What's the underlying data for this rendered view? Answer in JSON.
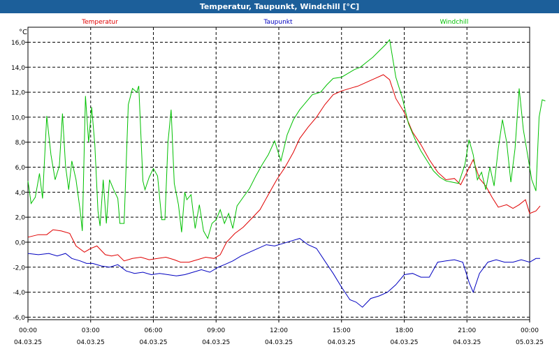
{
  "window": {
    "title": "Temperatur, Taupunkt, Windchill [°C]"
  },
  "chart_data": {
    "type": "line",
    "title": "Temperatur, Taupunkt, Windchill [°C]",
    "ylabel": "°C",
    "xlabel": "",
    "ylim": [
      -6.2,
      17.2
    ],
    "xlim": [
      0,
      24
    ],
    "grid": true,
    "yticks": [
      -6,
      -4,
      -2,
      0,
      2,
      4,
      6,
      8,
      10,
      12,
      14,
      16
    ],
    "ytick_labels": [
      "-6,0",
      "-4,0",
      "-2,0",
      "0,0",
      "2,0",
      "4,0",
      "6,0",
      "8,0",
      "10,0",
      "12,0",
      "14,0",
      "16,0"
    ],
    "xticks": [
      {
        "x": 0,
        "time": "00:00",
        "date": "04.03.25"
      },
      {
        "x": 3,
        "time": "03:00",
        "date": "04.03.25"
      },
      {
        "x": 6,
        "time": "06:00",
        "date": "04.03.25"
      },
      {
        "x": 9,
        "time": "09:00",
        "date": "04.03.25"
      },
      {
        "x": 12,
        "time": "12:00",
        "date": "04.03.25"
      },
      {
        "x": 15,
        "time": "15:00",
        "date": "04.03.25"
      },
      {
        "x": 18,
        "time": "18:00",
        "date": "04.03.25"
      },
      {
        "x": 21,
        "time": "21:00",
        "date": "04.03.25"
      },
      {
        "x": 24,
        "time": "00:00",
        "date": "05.03.25"
      }
    ],
    "series": [
      {
        "name": "Temperatur",
        "color": "#e00000",
        "points": [
          [
            0,
            0.4
          ],
          [
            0.5,
            0.6
          ],
          [
            0.9,
            0.6
          ],
          [
            1.2,
            1.0
          ],
          [
            1.6,
            0.9
          ],
          [
            2.0,
            0.7
          ],
          [
            2.3,
            -0.3
          ],
          [
            2.7,
            -0.8
          ],
          [
            3.0,
            -0.5
          ],
          [
            3.3,
            -0.3
          ],
          [
            3.7,
            -1.0
          ],
          [
            4.0,
            -1.1
          ],
          [
            4.3,
            -1.0
          ],
          [
            4.6,
            -1.5
          ],
          [
            5.0,
            -1.3
          ],
          [
            5.4,
            -1.2
          ],
          [
            5.8,
            -1.4
          ],
          [
            6.2,
            -1.3
          ],
          [
            6.6,
            -1.2
          ],
          [
            7.0,
            -1.4
          ],
          [
            7.3,
            -1.6
          ],
          [
            7.7,
            -1.6
          ],
          [
            8.1,
            -1.4
          ],
          [
            8.5,
            -1.2
          ],
          [
            8.9,
            -1.3
          ],
          [
            9.2,
            -1.0
          ],
          [
            9.5,
            0.0
          ],
          [
            9.9,
            0.7
          ],
          [
            10.3,
            1.2
          ],
          [
            10.7,
            1.9
          ],
          [
            11.1,
            2.6
          ],
          [
            11.5,
            3.8
          ],
          [
            11.9,
            5.0
          ],
          [
            12.3,
            6.0
          ],
          [
            12.7,
            7.2
          ],
          [
            13.0,
            8.3
          ],
          [
            13.4,
            9.2
          ],
          [
            13.8,
            10.0
          ],
          [
            14.2,
            11.0
          ],
          [
            14.6,
            11.8
          ],
          [
            15.0,
            12.1
          ],
          [
            15.4,
            12.3
          ],
          [
            15.8,
            12.5
          ],
          [
            16.2,
            12.8
          ],
          [
            16.6,
            13.1
          ],
          [
            17.0,
            13.4
          ],
          [
            17.3,
            13.0
          ],
          [
            17.6,
            11.5
          ],
          [
            18.0,
            10.4
          ],
          [
            18.4,
            8.8
          ],
          [
            18.8,
            7.8
          ],
          [
            19.2,
            6.6
          ],
          [
            19.6,
            5.6
          ],
          [
            20.0,
            5.0
          ],
          [
            20.4,
            5.1
          ],
          [
            20.7,
            4.6
          ],
          [
            21.0,
            5.6
          ],
          [
            21.3,
            6.6
          ],
          [
            21.6,
            5.1
          ],
          [
            21.9,
            4.5
          ],
          [
            22.2,
            3.6
          ],
          [
            22.5,
            2.8
          ],
          [
            22.9,
            3.0
          ],
          [
            23.2,
            2.7
          ],
          [
            23.5,
            3.0
          ],
          [
            23.8,
            3.4
          ],
          [
            24.0,
            2.3
          ],
          [
            24.3,
            2.5
          ],
          [
            24.5,
            2.9
          ]
        ]
      },
      {
        "name": "Taupunkt",
        "color": "#0000c0",
        "points": [
          [
            0,
            -0.9
          ],
          [
            0.5,
            -1.0
          ],
          [
            1.0,
            -0.9
          ],
          [
            1.4,
            -1.1
          ],
          [
            1.8,
            -0.9
          ],
          [
            2.1,
            -1.3
          ],
          [
            2.5,
            -1.5
          ],
          [
            2.8,
            -1.7
          ],
          [
            3.1,
            -1.7
          ],
          [
            3.5,
            -1.9
          ],
          [
            3.9,
            -2.0
          ],
          [
            4.3,
            -1.8
          ],
          [
            4.7,
            -2.3
          ],
          [
            5.1,
            -2.5
          ],
          [
            5.5,
            -2.4
          ],
          [
            5.9,
            -2.6
          ],
          [
            6.3,
            -2.5
          ],
          [
            6.7,
            -2.6
          ],
          [
            7.1,
            -2.7
          ],
          [
            7.5,
            -2.6
          ],
          [
            7.9,
            -2.4
          ],
          [
            8.3,
            -2.2
          ],
          [
            8.7,
            -2.4
          ],
          [
            9.1,
            -2.0
          ],
          [
            9.4,
            -1.8
          ],
          [
            9.8,
            -1.5
          ],
          [
            10.2,
            -1.1
          ],
          [
            10.6,
            -0.8
          ],
          [
            11.0,
            -0.5
          ],
          [
            11.4,
            -0.2
          ],
          [
            11.8,
            -0.3
          ],
          [
            12.2,
            -0.1
          ],
          [
            12.6,
            0.1
          ],
          [
            13.0,
            0.3
          ],
          [
            13.4,
            -0.2
          ],
          [
            13.8,
            -0.5
          ],
          [
            14.2,
            -1.5
          ],
          [
            14.6,
            -2.5
          ],
          [
            15.0,
            -3.6
          ],
          [
            15.4,
            -4.6
          ],
          [
            15.7,
            -4.8
          ],
          [
            16.0,
            -5.2
          ],
          [
            16.4,
            -4.5
          ],
          [
            16.8,
            -4.3
          ],
          [
            17.2,
            -4.0
          ],
          [
            17.6,
            -3.4
          ],
          [
            18.0,
            -2.6
          ],
          [
            18.4,
            -2.5
          ],
          [
            18.8,
            -2.8
          ],
          [
            19.2,
            -2.8
          ],
          [
            19.6,
            -1.6
          ],
          [
            20.0,
            -1.5
          ],
          [
            20.4,
            -1.4
          ],
          [
            20.8,
            -1.6
          ],
          [
            21.1,
            -3.2
          ],
          [
            21.3,
            -4.0
          ],
          [
            21.6,
            -2.5
          ],
          [
            22.0,
            -1.6
          ],
          [
            22.4,
            -1.4
          ],
          [
            22.8,
            -1.6
          ],
          [
            23.2,
            -1.6
          ],
          [
            23.6,
            -1.4
          ],
          [
            24.0,
            -1.6
          ],
          [
            24.3,
            -1.3
          ],
          [
            24.5,
            -1.3
          ]
        ]
      },
      {
        "name": "Windchill",
        "color": "#00c000",
        "points": [
          [
            0,
            4.9
          ],
          [
            0.15,
            3.1
          ],
          [
            0.35,
            3.6
          ],
          [
            0.55,
            5.5
          ],
          [
            0.7,
            3.5
          ],
          [
            0.9,
            10.1
          ],
          [
            1.1,
            7.0
          ],
          [
            1.3,
            5.0
          ],
          [
            1.5,
            6.1
          ],
          [
            1.65,
            10.3
          ],
          [
            1.8,
            6.1
          ],
          [
            1.95,
            4.2
          ],
          [
            2.1,
            6.5
          ],
          [
            2.3,
            5.0
          ],
          [
            2.5,
            2.5
          ],
          [
            2.6,
            0.9
          ],
          [
            2.75,
            11.7
          ],
          [
            2.9,
            8.0
          ],
          [
            3.05,
            10.8
          ],
          [
            3.2,
            7.8
          ],
          [
            3.35,
            2.5
          ],
          [
            3.45,
            1.3
          ],
          [
            3.6,
            5.0
          ],
          [
            3.75,
            1.5
          ],
          [
            3.9,
            5.0
          ],
          [
            4.1,
            4.2
          ],
          [
            4.3,
            3.5
          ],
          [
            4.4,
            1.5
          ],
          [
            4.6,
            1.5
          ],
          [
            4.8,
            11.0
          ],
          [
            5.0,
            12.3
          ],
          [
            5.2,
            12.0
          ],
          [
            5.3,
            12.5
          ],
          [
            5.5,
            4.9
          ],
          [
            5.6,
            4.2
          ],
          [
            5.8,
            5.2
          ],
          [
            6.0,
            5.9
          ],
          [
            6.2,
            5.3
          ],
          [
            6.4,
            1.8
          ],
          [
            6.55,
            1.8
          ],
          [
            6.7,
            8.0
          ],
          [
            6.85,
            10.6
          ],
          [
            7.0,
            4.7
          ],
          [
            7.2,
            3.0
          ],
          [
            7.35,
            0.8
          ],
          [
            7.5,
            4.0
          ],
          [
            7.6,
            3.4
          ],
          [
            7.8,
            3.8
          ],
          [
            8.0,
            1.1
          ],
          [
            8.2,
            3.0
          ],
          [
            8.4,
            0.9
          ],
          [
            8.6,
            0.3
          ],
          [
            8.8,
            1.5
          ],
          [
            9.0,
            1.8
          ],
          [
            9.2,
            2.6
          ],
          [
            9.4,
            1.5
          ],
          [
            9.6,
            2.3
          ],
          [
            9.8,
            1.1
          ],
          [
            10.0,
            2.9
          ],
          [
            10.3,
            3.6
          ],
          [
            10.6,
            4.3
          ],
          [
            10.9,
            5.3
          ],
          [
            11.2,
            6.2
          ],
          [
            11.5,
            7.0
          ],
          [
            11.8,
            8.1
          ],
          [
            12.1,
            6.5
          ],
          [
            12.4,
            8.6
          ],
          [
            12.7,
            9.8
          ],
          [
            13.0,
            10.6
          ],
          [
            13.3,
            11.2
          ],
          [
            13.6,
            11.8
          ],
          [
            14.0,
            12.0
          ],
          [
            14.3,
            12.6
          ],
          [
            14.6,
            13.1
          ],
          [
            15.0,
            13.2
          ],
          [
            15.3,
            13.5
          ],
          [
            15.6,
            13.8
          ],
          [
            15.9,
            14.0
          ],
          [
            16.2,
            14.4
          ],
          [
            16.5,
            14.8
          ],
          [
            16.8,
            15.3
          ],
          [
            17.1,
            15.8
          ],
          [
            17.3,
            16.2
          ],
          [
            17.6,
            13.2
          ],
          [
            17.9,
            11.6
          ],
          [
            18.2,
            9.5
          ],
          [
            18.5,
            8.3
          ],
          [
            18.8,
            7.3
          ],
          [
            19.1,
            6.5
          ],
          [
            19.4,
            5.7
          ],
          [
            19.7,
            5.2
          ],
          [
            20.0,
            4.9
          ],
          [
            20.3,
            4.8
          ],
          [
            20.6,
            4.7
          ],
          [
            20.9,
            6.2
          ],
          [
            21.1,
            8.2
          ],
          [
            21.3,
            7.0
          ],
          [
            21.5,
            5.0
          ],
          [
            21.7,
            5.6
          ],
          [
            21.9,
            4.2
          ],
          [
            22.1,
            6.0
          ],
          [
            22.3,
            4.5
          ],
          [
            22.5,
            7.5
          ],
          [
            22.7,
            9.8
          ],
          [
            22.9,
            8.0
          ],
          [
            23.1,
            4.8
          ],
          [
            23.3,
            7.5
          ],
          [
            23.5,
            12.3
          ],
          [
            23.7,
            9.0
          ],
          [
            23.9,
            7.0
          ],
          [
            24.1,
            5.0
          ],
          [
            24.3,
            4.1
          ],
          [
            24.45,
            10.0
          ],
          [
            24.6,
            11.4
          ],
          [
            24.75,
            11.3
          ]
        ]
      }
    ]
  }
}
